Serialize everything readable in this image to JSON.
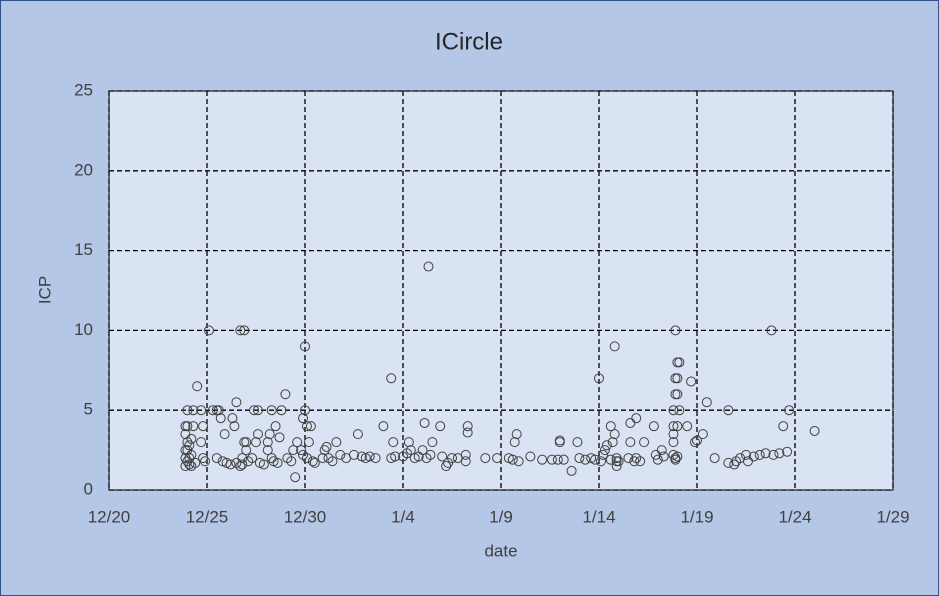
{
  "chart_data": {
    "type": "scatter",
    "title": "ICircle",
    "xlabel": "date",
    "ylabel": "ICP",
    "color": "#404040",
    "background": "#b4c7e7",
    "plot_background": "#dae3f3",
    "grid": true,
    "xlim": [
      0,
      40
    ],
    "ylim": [
      0,
      25
    ],
    "xticks": [
      {
        "value": 0,
        "label": "12/20"
      },
      {
        "value": 5,
        "label": "12/25"
      },
      {
        "value": 10,
        "label": "12/30"
      },
      {
        "value": 15,
        "label": "1/4"
      },
      {
        "value": 20,
        "label": "1/9"
      },
      {
        "value": 25,
        "label": "1/14"
      },
      {
        "value": 30,
        "label": "1/19"
      },
      {
        "value": 35,
        "label": "1/24"
      },
      {
        "value": 40,
        "label": "1/29"
      }
    ],
    "yticks": [
      0,
      5,
      10,
      15,
      20,
      25
    ],
    "x": [
      4.0,
      3.9,
      4.0,
      3.9,
      4.0,
      3.9,
      4.0,
      3.9,
      4.1,
      4.0,
      4.1,
      3.9,
      4.2,
      4.2,
      4.1,
      4.2,
      4.3,
      4.3,
      4.4,
      4.5,
      4.7,
      4.8,
      4.7,
      4.8,
      4.9,
      5.1,
      5.3,
      5.5,
      5.6,
      5.7,
      5.5,
      5.8,
      6.0,
      6.2,
      5.9,
      6.3,
      6.5,
      6.4,
      6.5,
      6.7,
      6.8,
      6.8,
      6.9,
      6.7,
      6.9,
      7.0,
      7.0,
      7.1,
      7.4,
      7.6,
      7.6,
      7.5,
      7.3,
      7.7,
      7.9,
      8.1,
      8.2,
      8.1,
      8.3,
      8.4,
      8.6,
      8.3,
      8.5,
      8.7,
      9.0,
      8.8,
      9.1,
      9.3,
      9.5,
      9.4,
      9.6,
      10.0,
      10.0,
      9.9,
      10.1,
      10.3,
      10.2,
      9.8,
      10.1,
      10.4,
      10.5,
      9.9,
      10.9,
      11.0,
      11.1,
      11.2,
      11.4,
      11.6,
      11.8,
      12.1,
      12.5,
      12.7,
      12.9,
      13.1,
      13.3,
      13.6,
      14.0,
      14.4,
      14.5,
      14.4,
      14.6,
      15.0,
      15.2,
      15.3,
      15.4,
      15.6,
      15.8,
      16.1,
      16.0,
      16.3,
      16.4,
      16.2,
      16.5,
      16.9,
      17.0,
      17.3,
      17.2,
      17.5,
      17.8,
      18.2,
      18.3,
      18.3,
      18.2,
      19.2,
      19.8,
      20.4,
      20.6,
      20.7,
      20.8,
      20.9,
      21.5,
      22.1,
      22.6,
      22.9,
      23.0,
      23.0,
      23.2,
      23.6,
      23.9,
      24.0,
      24.3,
      24.6,
      24.8,
      25.1,
      25.0,
      25.2,
      25.3,
      25.4,
      25.6,
      25.6,
      25.9,
      25.8,
      25.8,
      25.7,
      25.9,
      25.9,
      26.0,
      26.5,
      26.8,
      26.6,
      26.6,
      26.9,
      26.9,
      27.1,
      27.3,
      27.8,
      27.9,
      28.0,
      28.2,
      28.3,
      28.9,
      29.0,
      29.1,
      28.9,
      29.0,
      28.9,
      29.0,
      28.8,
      29.1,
      28.8,
      29.0,
      28.8,
      28.8,
      28.8,
      28.9,
      28.9,
      29.0,
      29.5,
      29.7,
      29.9,
      30.0,
      30.3,
      30.5,
      30.9,
      31.6,
      31.6,
      31.9,
      32.0,
      32.2,
      32.5,
      32.6,
      32.9,
      33.2,
      33.5,
      33.8,
      33.9,
      34.2,
      34.4,
      34.7,
      34.6,
      36.0
    ],
    "values": [
      5,
      4,
      4,
      3.5,
      3,
      2.5,
      2.5,
      2,
      2,
      1.8,
      1.6,
      1.5,
      1.5,
      2.2,
      2.8,
      3.2,
      4,
      5,
      1.7,
      6.5,
      5,
      4,
      3,
      2,
      1.8,
      10,
      5,
      5,
      5,
      4.5,
      2,
      1.8,
      1.7,
      1.6,
      3.5,
      4.5,
      5.5,
      4,
      1.7,
      1.5,
      1.6,
      2,
      3,
      10,
      10,
      3,
      2.5,
      1.8,
      5,
      5,
      3.5,
      3,
      2,
      1.7,
      1.6,
      3,
      3.5,
      2.5,
      2,
      1.8,
      1.7,
      5,
      4,
      3.3,
      6,
      5,
      2,
      1.8,
      0.8,
      2.5,
      3,
      9,
      5,
      4.5,
      4,
      4,
      3,
      2.5,
      2,
      1.8,
      1.7,
      2.2,
      2,
      2.5,
      2.7,
      2,
      1.8,
      3,
      2.2,
      2,
      2.2,
      3.5,
      2.1,
      2,
      2.1,
      2,
      4,
      7,
      3,
      2,
      2.1,
      2.1,
      2.3,
      3,
      2.5,
      2,
      2.1,
      4.2,
      2.5,
      14,
      2.2,
      2,
      3,
      4,
      2.1,
      1.7,
      1.5,
      2,
      2,
      2.2,
      4,
      3.6,
      1.8,
      2,
      2,
      2,
      1.9,
      3,
      3.5,
      1.8,
      2.1,
      1.9,
      1.9,
      1.9,
      3,
      3.1,
      1.9,
      1.2,
      3,
      2,
      1.9,
      2,
      1.9,
      1.8,
      7,
      2.2,
      2.5,
      2.8,
      4,
      1.9,
      2,
      9,
      3.5,
      3,
      1.8,
      1.5,
      1.8,
      2,
      1.8,
      4.2,
      3,
      4.5,
      2,
      1.8,
      3,
      4,
      2.2,
      1.9,
      2.5,
      2.1,
      10,
      8,
      8,
      7,
      7,
      6,
      6,
      5,
      5,
      4,
      4,
      3.5,
      3,
      2.2,
      2,
      1.9,
      2.1,
      4,
      6.8,
      3,
      3.1,
      3.5,
      5.5,
      2,
      5,
      1.7,
      1.6,
      1.8,
      2,
      2.2,
      1.8,
      2.1,
      2.2,
      2.3,
      10,
      2.2,
      2.3,
      4,
      5,
      2.4,
      3.7
    ]
  }
}
